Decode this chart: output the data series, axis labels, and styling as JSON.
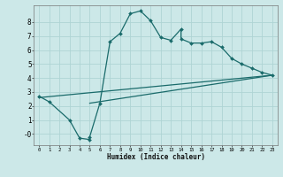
{
  "xlabel": "Humidex (Indice chaleur)",
  "ylabel": "",
  "bg_color": "#cce8e8",
  "grid_color": "#afd4d4",
  "line_color": "#1a6b6b",
  "xlim": [
    -0.5,
    23.5
  ],
  "ylim": [
    -0.8,
    9.2
  ],
  "xticks": [
    0,
    1,
    2,
    3,
    4,
    5,
    6,
    7,
    8,
    9,
    10,
    11,
    12,
    13,
    14,
    15,
    16,
    17,
    18,
    19,
    20,
    21,
    22,
    23
  ],
  "yticks": [
    0,
    1,
    2,
    3,
    4,
    5,
    6,
    7,
    8
  ],
  "ytick_labels": [
    "-0",
    "1",
    "2",
    "3",
    "4",
    "5",
    "6",
    "7",
    "8"
  ],
  "line1_x": [
    0,
    1,
    3,
    4,
    5,
    5,
    6,
    7,
    8,
    9,
    10,
    11,
    12,
    13,
    14,
    14,
    15,
    16,
    17,
    18,
    19,
    20,
    21,
    22,
    23
  ],
  "line1_y": [
    2.7,
    2.3,
    1.0,
    -0.3,
    -0.4,
    -0.2,
    2.2,
    6.6,
    7.2,
    8.6,
    8.8,
    8.1,
    6.9,
    6.7,
    7.5,
    6.8,
    6.5,
    6.5,
    6.6,
    6.2,
    5.4,
    5.0,
    4.7,
    4.4,
    4.2
  ],
  "line2_x": [
    0,
    23
  ],
  "line2_y": [
    2.6,
    4.2
  ],
  "line3_x": [
    5,
    23
  ],
  "line3_y": [
    2.2,
    4.2
  ]
}
